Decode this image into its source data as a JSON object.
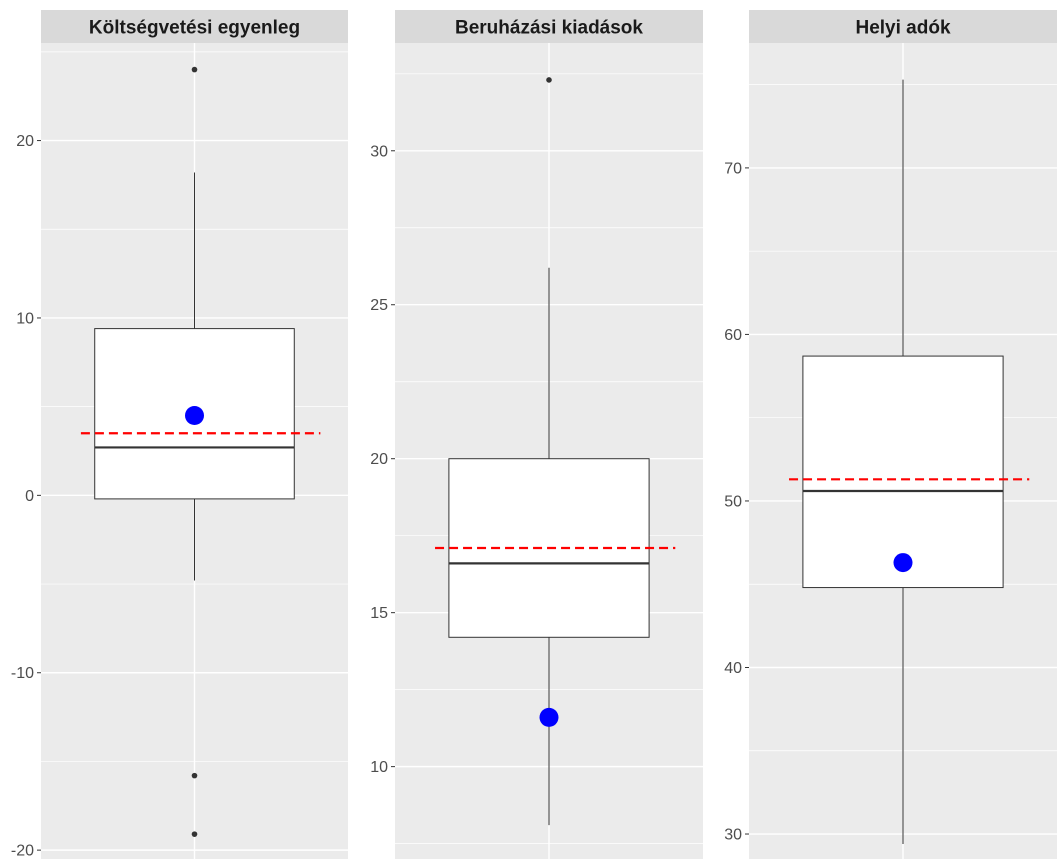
{
  "chart_data": [
    {
      "type": "boxplot",
      "title": "Költségvetési egyenleg",
      "ylim": [
        -20.5,
        25.5
      ],
      "yticks": [
        -20,
        -10,
        0,
        10,
        20
      ],
      "ytick_labels": [
        "-20",
        "-10",
        "0",
        "10",
        "20"
      ],
      "box": {
        "whisker_low": -4.8,
        "q1": -0.2,
        "median": 2.7,
        "q3": 9.4,
        "whisker_high": 18.2
      },
      "outliers": [
        24,
        -15.8,
        -19.1
      ],
      "mean_line": 3.5,
      "highlight_point": 4.5,
      "grid": true
    },
    {
      "type": "boxplot",
      "title": "Beruházási kiadások",
      "ylim": [
        7.0,
        33.5
      ],
      "yticks": [
        10,
        15,
        20,
        25,
        30
      ],
      "ytick_labels": [
        "10",
        "15",
        "20",
        "25",
        "30"
      ],
      "box": {
        "whisker_low": 8.1,
        "q1": 14.2,
        "median": 16.6,
        "q3": 20.0,
        "whisker_high": 26.2
      },
      "outliers": [
        32.3
      ],
      "mean_line": 17.1,
      "highlight_point": 11.6,
      "grid": true
    },
    {
      "type": "boxplot",
      "title": "Helyi adók",
      "ylim": [
        28.5,
        77.5
      ],
      "yticks": [
        30,
        40,
        50,
        60,
        70
      ],
      "ytick_labels": [
        "30",
        "40",
        "50",
        "60",
        "70"
      ],
      "box": {
        "whisker_low": 29.4,
        "q1": 44.8,
        "median": 50.6,
        "q3": 58.7,
        "whisker_high": 75.3
      },
      "outliers": [],
      "mean_line": 51.3,
      "highlight_point": 46.3,
      "grid": true
    }
  ],
  "colors": {
    "panel_bg": "#ebebeb",
    "strip_bg": "#d9d9d9",
    "grid_major": "#ffffff",
    "mean_line": "#ff0000",
    "highlight_point": "#0000ff",
    "box_fill": "#ffffff",
    "box_stroke": "#333333"
  }
}
